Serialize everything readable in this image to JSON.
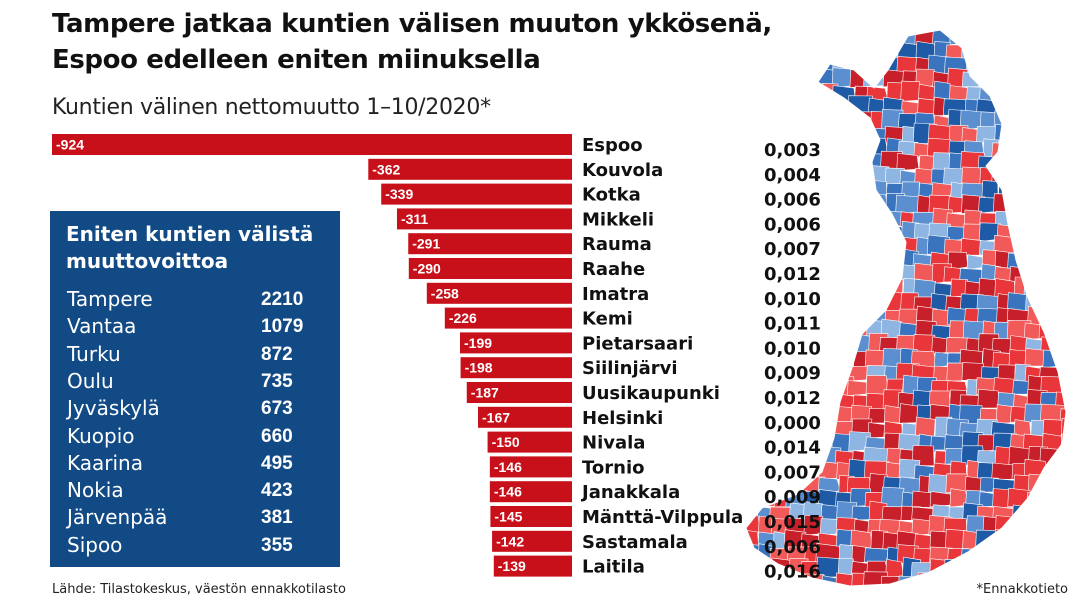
{
  "title_lines": [
    "Tampere jatkaa kuntien välisen muuton ykkösenä,",
    "Espoo edelleen eniten miinuksella"
  ],
  "subtitle": "Kuntien välinen nettomuutto 1–10/2020*",
  "chart_data": {
    "type": "bar",
    "orientation": "horizontal",
    "title": "Kuntien välinen nettomuutto 1–10/2020*",
    "categories": [
      "Espoo",
      "Kouvola",
      "Kotka",
      "Mikkeli",
      "Rauma",
      "Raahe",
      "Imatra",
      "Kemi",
      "Pietarsaari",
      "Siilinjärvi",
      "Uusikaupunki",
      "Helsinki",
      "Nivala",
      "Tornio",
      "Janakkala",
      "Mänttä-Vilppula",
      "Sastamala",
      "Laitila"
    ],
    "values": [
      -924,
      -362,
      -339,
      -311,
      -291,
      -290,
      -258,
      -226,
      -199,
      -198,
      -187,
      -167,
      -150,
      -146,
      -146,
      -145,
      -142,
      -139
    ],
    "value_labels": [
      "-924",
      "-362",
      "-339",
      "-311",
      "-291",
      "-290",
      "-258",
      "-226",
      "-199",
      "-198",
      "-187",
      "-167",
      "-150",
      "-146",
      "-146",
      "-145",
      "-142",
      "-139"
    ],
    "side_values": [
      "0,003",
      "0,004",
      "0,006",
      "0,006",
      "0,007",
      "0,012",
      "0,010",
      "0,011",
      "0,010",
      "0,009",
      "0,012",
      "0,000",
      "0,014",
      "0,007",
      "0,009",
      "0,015",
      "0,006",
      "0,016"
    ],
    "bar_color": "#c8101a",
    "xlim": [
      -924,
      0
    ]
  },
  "panel": {
    "title": "Eniten kuntien välistä muuttovoittoa",
    "rows": [
      {
        "city": "Tampere",
        "value": "2210"
      },
      {
        "city": "Vantaa",
        "value": "1079"
      },
      {
        "city": "Turku",
        "value": "872"
      },
      {
        "city": "Oulu",
        "value": "735"
      },
      {
        "city": "Jyväskylä",
        "value": "673"
      },
      {
        "city": "Kuopio",
        "value": "660"
      },
      {
        "city": "Kaarina",
        "value": "495"
      },
      {
        "city": "Nokia",
        "value": "423"
      },
      {
        "city": "Järvenpää",
        "value": "381"
      },
      {
        "city": "Sipoo",
        "value": "355"
      }
    ],
    "color": "#124a85"
  },
  "map": {
    "icon": "finland-municipality-map",
    "colors": [
      "#e8363a",
      "#f25a5a",
      "#c8202a",
      "#1f5aa6",
      "#5b8fd0",
      "#8fb5e3",
      "#3a74bf"
    ]
  },
  "source": "Lähde: Tilastokeskus, väestön ennakkotilasto",
  "footnote": "*Ennakkotieto"
}
